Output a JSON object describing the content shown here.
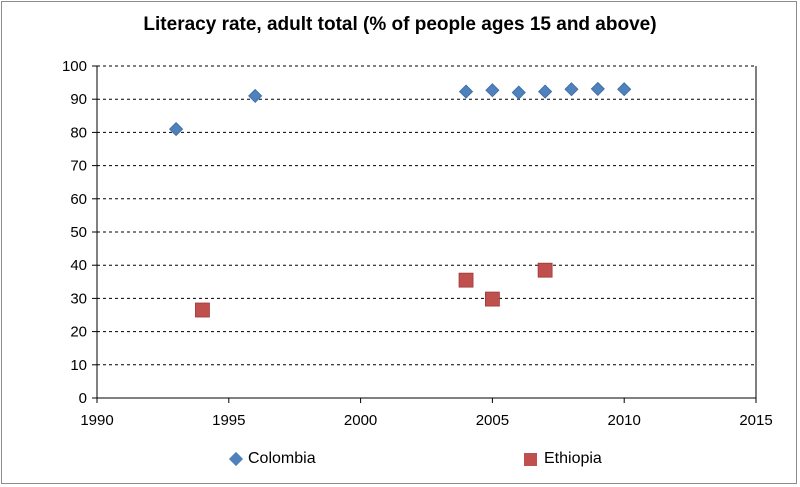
{
  "chart_data": {
    "type": "scatter",
    "title": "Literacy rate, adult total (% of people ages 15 and above)",
    "xlabel": "",
    "ylabel": "",
    "xlim": [
      1990,
      2015
    ],
    "ylim": [
      0,
      100
    ],
    "x_ticks": [
      1990,
      1995,
      2000,
      2005,
      2010,
      2015
    ],
    "y_ticks": [
      0,
      10,
      20,
      30,
      40,
      50,
      60,
      70,
      80,
      90,
      100
    ],
    "grid": "horizontal dashed",
    "legend_position": "bottom",
    "series": [
      {
        "name": "Colombia",
        "marker": "diamond",
        "color": "#4f81bd",
        "points": [
          {
            "x": 1993,
            "y": 81.0
          },
          {
            "x": 1996,
            "y": 91.0
          },
          {
            "x": 2004,
            "y": 92.3
          },
          {
            "x": 2005,
            "y": 92.7
          },
          {
            "x": 2006,
            "y": 92.0
          },
          {
            "x": 2007,
            "y": 92.3
          },
          {
            "x": 2008,
            "y": 93.0
          },
          {
            "x": 2009,
            "y": 93.1
          },
          {
            "x": 2010,
            "y": 93.0
          }
        ]
      },
      {
        "name": "Ethiopia",
        "marker": "square",
        "color": "#c0504d",
        "points": [
          {
            "x": 1994,
            "y": 26.5
          },
          {
            "x": 2004,
            "y": 35.5
          },
          {
            "x": 2005,
            "y": 29.8
          },
          {
            "x": 2007,
            "y": 38.5
          }
        ]
      }
    ]
  }
}
